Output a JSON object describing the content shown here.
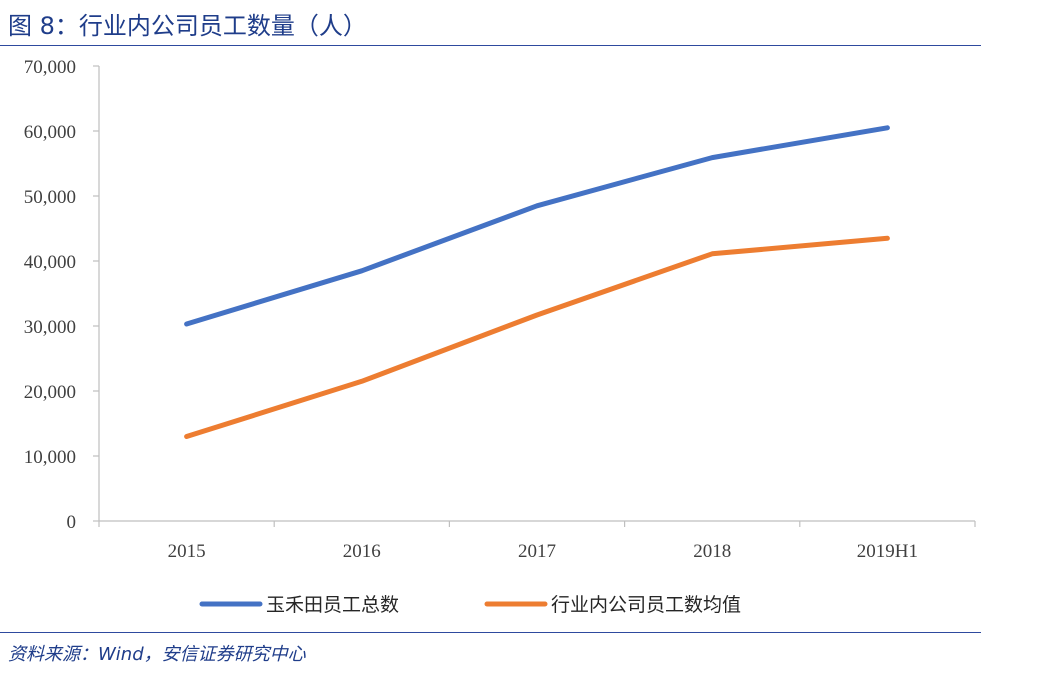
{
  "header": {
    "title": "图 8：行业内公司员工数量（人）"
  },
  "footer": {
    "source": "资料来源：Wind，安信证券研究中心"
  },
  "chart_data": {
    "type": "line",
    "title": "图 8：行业内公司员工数量（人）",
    "xlabel": "",
    "ylabel": "",
    "categories": [
      "2015",
      "2016",
      "2017",
      "2018",
      "2019H1"
    ],
    "y_ticks": [
      "0",
      "10,000",
      "20,000",
      "30,000",
      "40,000",
      "50,000",
      "60,000",
      "70,000"
    ],
    "ylim": [
      0,
      70000
    ],
    "grid": false,
    "legend_position": "bottom",
    "series": [
      {
        "name": "玉禾田员工总数",
        "color": "#4472c4",
        "values": [
          30300,
          38500,
          48500,
          55900,
          60500
        ]
      },
      {
        "name": "行业内公司员工数均值",
        "color": "#ed7d31",
        "values": [
          13000,
          21500,
          31700,
          41100,
          43500
        ]
      }
    ]
  }
}
